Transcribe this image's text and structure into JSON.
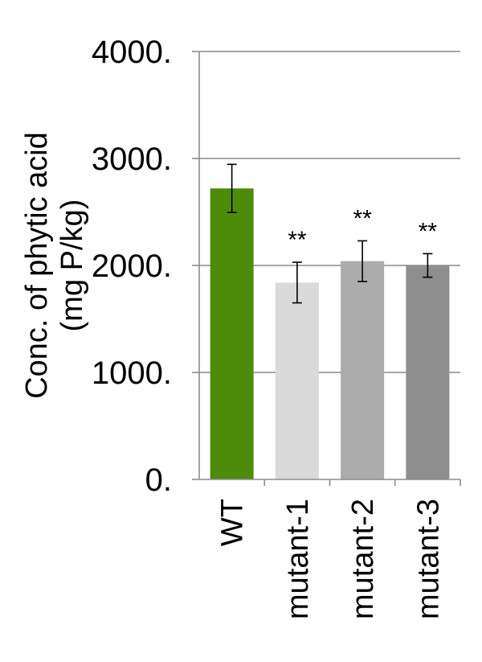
{
  "chart_data": {
    "type": "bar",
    "ylabel_lines": [
      "Conc. of phytic acid",
      "(mg P/kg)"
    ],
    "categories": [
      "WT",
      "mutant-1",
      "mutant-2",
      "mutant-3"
    ],
    "values": [
      2720,
      1840,
      2040,
      2000
    ],
    "error": [
      225,
      190,
      190,
      110
    ],
    "significance": [
      "",
      "**",
      "**",
      "**"
    ],
    "bar_colors": [
      "#4d8c0a",
      "#dadada",
      "#acacac",
      "#8e8e8e"
    ],
    "ylim": [
      0,
      4000
    ],
    "yticks": [
      0,
      1000,
      2000,
      3000,
      4000
    ],
    "ytick_labels": [
      "0.",
      "1000.",
      "2000.",
      "3000.",
      "4000."
    ],
    "grid": true,
    "legend": "none"
  }
}
